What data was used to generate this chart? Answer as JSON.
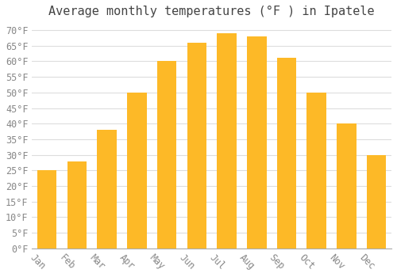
{
  "title": "Average monthly temperatures (°F ) in Ipatele",
  "months": [
    "Jan",
    "Feb",
    "Mar",
    "Apr",
    "May",
    "Jun",
    "Jul",
    "Aug",
    "Sep",
    "Oct",
    "Nov",
    "Dec"
  ],
  "values": [
    25,
    28,
    38,
    50,
    60,
    66,
    69,
    68,
    61,
    50,
    40,
    30
  ],
  "bar_color_top": "#FDB927",
  "bar_color_bottom": "#F5A623",
  "bar_edge_color": "none",
  "background_color": "#FFFFFF",
  "grid_color": "#DDDDDD",
  "text_color": "#888888",
  "title_color": "#444444",
  "ylim": [
    0,
    72
  ],
  "yticks": [
    0,
    5,
    10,
    15,
    20,
    25,
    30,
    35,
    40,
    45,
    50,
    55,
    60,
    65,
    70
  ],
  "ylabel_suffix": "°F",
  "title_fontsize": 11,
  "tick_fontsize": 8.5,
  "bar_width": 0.65,
  "xlabel_rotation": -45
}
